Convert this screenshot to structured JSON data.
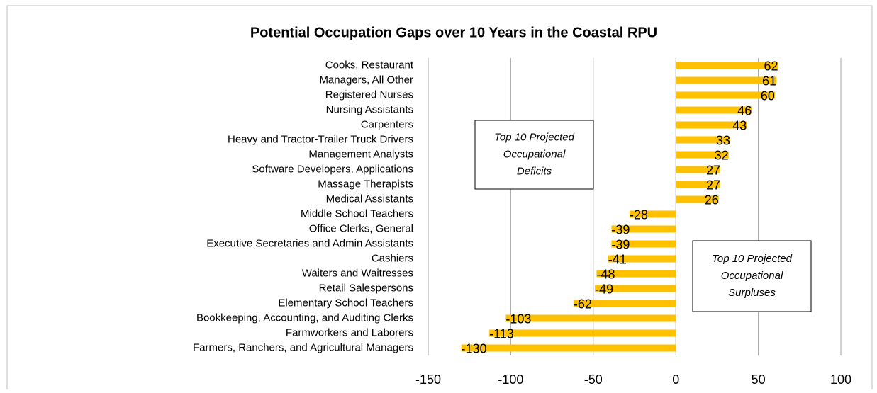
{
  "chart_data": {
    "type": "barh",
    "title": "Potential Occupation Gaps over 10 Years in the Coastal RPU",
    "categories": [
      "Cooks, Restaurant",
      "Managers, All Other",
      "Registered Nurses",
      "Nursing Assistants",
      "Carpenters",
      "Heavy and Tractor-Trailer Truck Drivers",
      "Management Analysts",
      "Software Developers, Applications",
      "Massage Therapists",
      "Medical Assistants",
      "Middle School Teachers",
      "Office Clerks, General",
      "Executive Secretaries and Admin Assistants",
      "Cashiers",
      "Waiters and Waitresses",
      "Retail Salespersons",
      "Elementary School Teachers",
      "Bookkeeping, Accounting, and Auditing Clerks",
      "Farmworkers and Laborers",
      "Farmers, Ranchers, and Agricultural Managers"
    ],
    "values": [
      62,
      61,
      60,
      46,
      43,
      33,
      32,
      27,
      27,
      26,
      -28,
      -39,
      -39,
      -41,
      -48,
      -49,
      -62,
      -103,
      -113,
      -130
    ],
    "color": "#ffc000",
    "xlim": [
      -150,
      100
    ],
    "xticks": [
      -150,
      -100,
      -50,
      0,
      50,
      100
    ],
    "grid": true,
    "annotations": [
      {
        "lines": [
          "Top 10 Projected",
          "Occupational",
          "Deficits"
        ]
      },
      {
        "lines": [
          "Top 10 Projected",
          "Occupational",
          "Surpluses"
        ]
      }
    ]
  }
}
